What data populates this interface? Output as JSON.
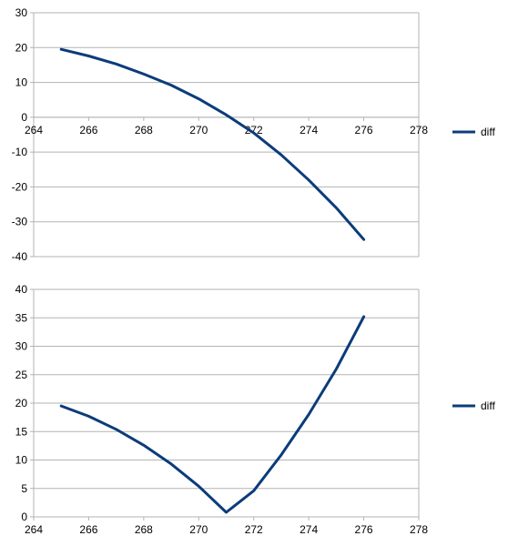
{
  "chart_data": [
    {
      "type": "line",
      "title": "",
      "xlabel": "",
      "ylabel": "",
      "xlim": [
        264,
        278
      ],
      "ylim": [
        -40,
        30
      ],
      "xticks": [
        264,
        266,
        268,
        270,
        272,
        274,
        276,
        278
      ],
      "yticks": [
        30,
        20,
        10,
        0,
        -10,
        -20,
        -30,
        -40
      ],
      "grid": "horizontal",
      "x_axis_crosses_at_zero": true,
      "legend": {
        "position": "right",
        "entries": [
          "diff"
        ]
      },
      "series": [
        {
          "name": "diff",
          "color": "#0b3c7a",
          "x": [
            265,
            266,
            267,
            268,
            269,
            270,
            271,
            272,
            273,
            274,
            275,
            276
          ],
          "y": [
            19.5,
            17.6,
            15.3,
            12.4,
            9.2,
            5.3,
            0.7,
            -4.5,
            -10.8,
            -18.0,
            -26.0,
            -35.1
          ]
        }
      ]
    },
    {
      "type": "line",
      "title": "",
      "xlabel": "",
      "ylabel": "",
      "xlim": [
        264,
        278
      ],
      "ylim": [
        0,
        40
      ],
      "xticks": [
        264,
        266,
        268,
        270,
        272,
        274,
        276,
        278
      ],
      "yticks": [
        40,
        35,
        30,
        25,
        20,
        15,
        10,
        5,
        0
      ],
      "grid": "horizontal",
      "legend": {
        "position": "right",
        "entries": [
          "diff"
        ]
      },
      "series": [
        {
          "name": "diff",
          "color": "#0b3c7a",
          "x": [
            265,
            266,
            267,
            268,
            269,
            270,
            271,
            272,
            273,
            274,
            275,
            276
          ],
          "y": [
            19.5,
            17.7,
            15.4,
            12.6,
            9.3,
            5.4,
            0.8,
            4.6,
            10.9,
            18.0,
            26.0,
            35.2
          ]
        }
      ]
    }
  ]
}
